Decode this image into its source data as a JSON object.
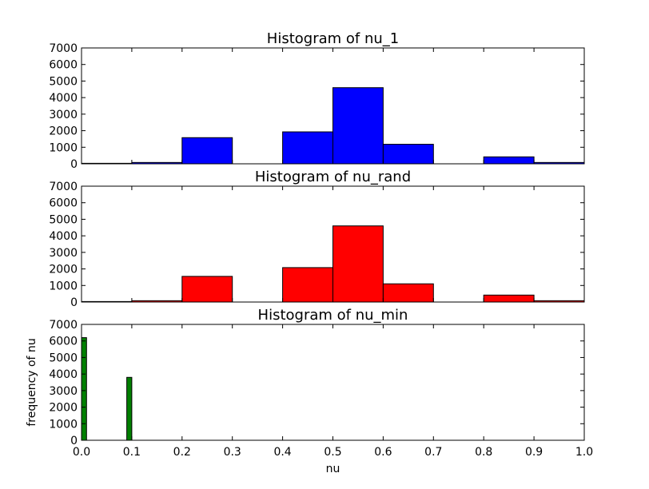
{
  "chart_data": [
    {
      "type": "bar",
      "title": "Histogram of nu_1",
      "xlabel": "",
      "ylabel": "",
      "xlim": [
        0.0,
        1.0
      ],
      "ylim": [
        0,
        7000
      ],
      "yticks": [
        "0",
        "1000",
        "2000",
        "3000",
        "4000",
        "5000",
        "6000",
        "7000"
      ],
      "grid": false,
      "color": "#0000ff",
      "bins": [
        {
          "x0": 0.0,
          "x1": 0.1,
          "count": 30
        },
        {
          "x0": 0.1,
          "x1": 0.2,
          "count": 80
        },
        {
          "x0": 0.2,
          "x1": 0.3,
          "count": 1580
        },
        {
          "x0": 0.3,
          "x1": 0.4,
          "count": 0
        },
        {
          "x0": 0.4,
          "x1": 0.5,
          "count": 1930
        },
        {
          "x0": 0.5,
          "x1": 0.6,
          "count": 4600
        },
        {
          "x0": 0.6,
          "x1": 0.7,
          "count": 1180
        },
        {
          "x0": 0.7,
          "x1": 0.8,
          "count": 0
        },
        {
          "x0": 0.8,
          "x1": 0.9,
          "count": 420
        },
        {
          "x0": 0.9,
          "x1": 1.0,
          "count": 80
        }
      ]
    },
    {
      "type": "bar",
      "title": "Histogram of nu_rand",
      "xlabel": "",
      "ylabel": "",
      "xlim": [
        0.0,
        1.0
      ],
      "ylim": [
        0,
        7000
      ],
      "yticks": [
        "0",
        "1000",
        "2000",
        "3000",
        "4000",
        "5000",
        "6000",
        "7000"
      ],
      "grid": false,
      "color": "#ff0000",
      "bins": [
        {
          "x0": 0.0,
          "x1": 0.1,
          "count": 30
        },
        {
          "x0": 0.1,
          "x1": 0.2,
          "count": 80
        },
        {
          "x0": 0.2,
          "x1": 0.3,
          "count": 1550
        },
        {
          "x0": 0.3,
          "x1": 0.4,
          "count": 0
        },
        {
          "x0": 0.4,
          "x1": 0.5,
          "count": 2080
        },
        {
          "x0": 0.5,
          "x1": 0.6,
          "count": 4600
        },
        {
          "x0": 0.6,
          "x1": 0.7,
          "count": 1100
        },
        {
          "x0": 0.7,
          "x1": 0.8,
          "count": 0
        },
        {
          "x0": 0.8,
          "x1": 0.9,
          "count": 420
        },
        {
          "x0": 0.9,
          "x1": 1.0,
          "count": 80
        }
      ]
    },
    {
      "type": "bar",
      "title": "Histogram of nu_min",
      "xlabel": "nu",
      "ylabel": "frequency of nu",
      "xlim": [
        0.0,
        1.0
      ],
      "ylim": [
        0,
        7000
      ],
      "yticks": [
        "0",
        "1000",
        "2000",
        "3000",
        "4000",
        "5000",
        "6000",
        "7000"
      ],
      "xticks": [
        "0.0",
        "0.1",
        "0.2",
        "0.3",
        "0.4",
        "0.5",
        "0.6",
        "0.7",
        "0.8",
        "0.9",
        "1.0"
      ],
      "grid": false,
      "color": "#007f00",
      "bins": [
        {
          "x0": 0.0,
          "x1": 0.01,
          "count": 6200
        },
        {
          "x0": 0.09,
          "x1": 0.1,
          "count": 3800
        }
      ]
    }
  ]
}
